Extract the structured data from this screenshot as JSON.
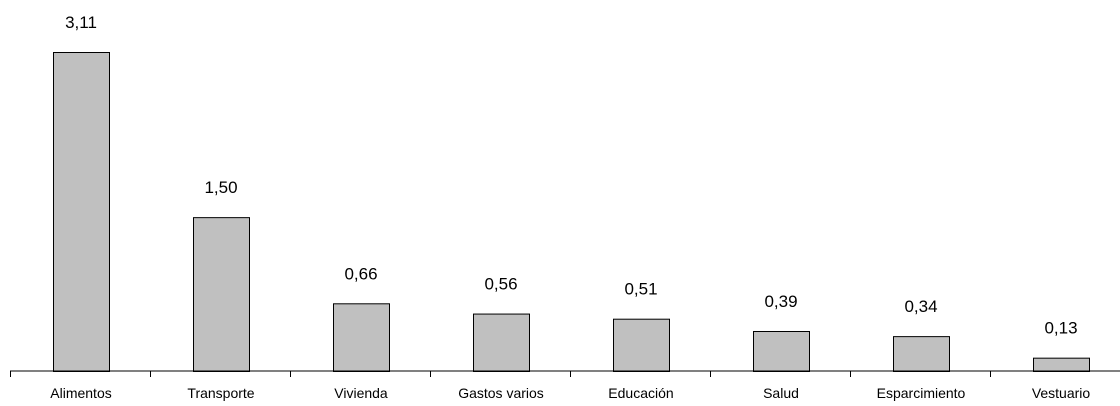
{
  "chart_data": {
    "type": "bar",
    "categories": [
      "Alimentos",
      "Transporte",
      "Vivienda",
      "Gastos varios",
      "Educación",
      "Salud",
      "Esparcimiento",
      "Vestuario"
    ],
    "values": [
      3.11,
      1.5,
      0.66,
      0.56,
      0.51,
      0.39,
      0.34,
      0.13
    ],
    "value_labels": [
      "3,11",
      "1,50",
      "0,66",
      "0,56",
      "0,51",
      "0,39",
      "0,34",
      "0,13"
    ],
    "title": "",
    "xlabel": "",
    "ylabel": "",
    "ylim": [
      0,
      3.11
    ],
    "grid": false,
    "legend": "none",
    "bar_color": "#c0c0c0",
    "bar_edge_color": "#000000",
    "axis_color": "#000000"
  }
}
